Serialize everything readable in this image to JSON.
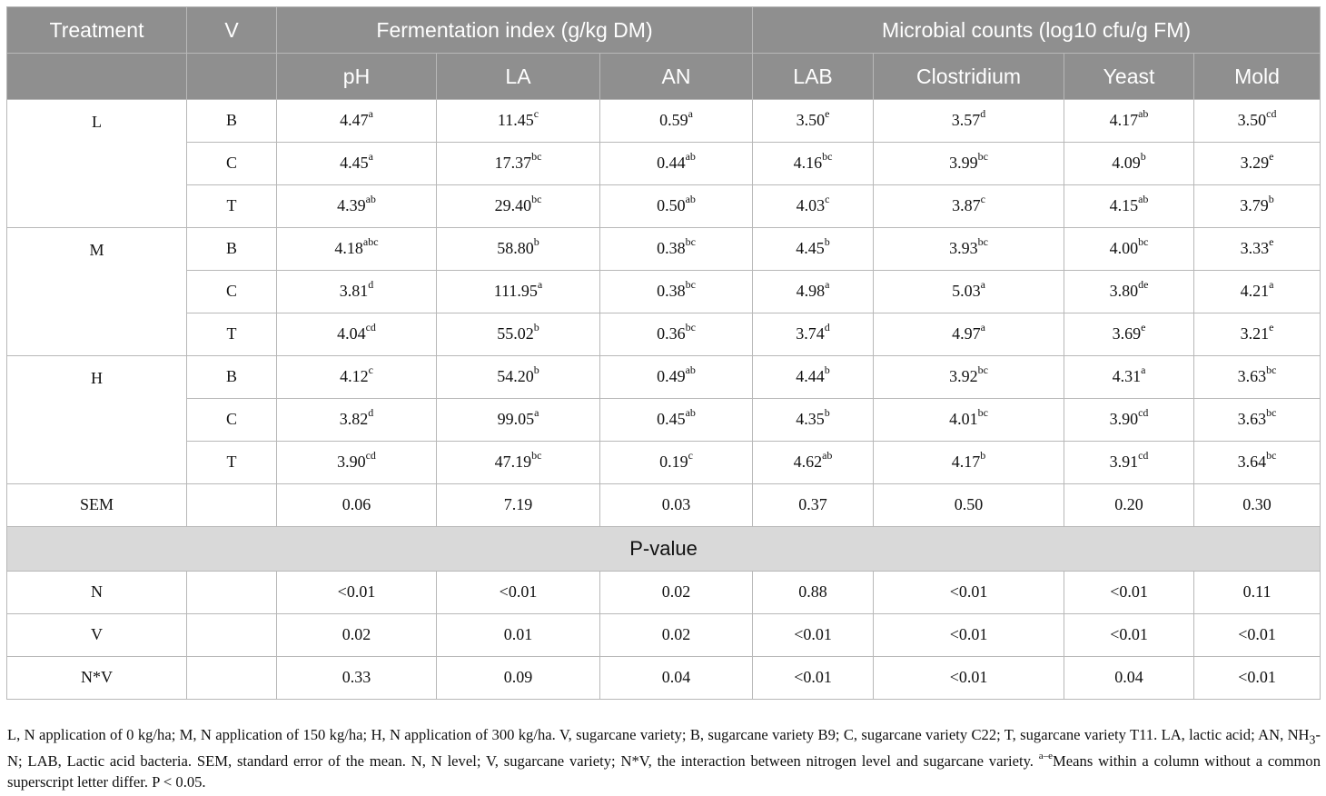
{
  "header": {
    "treatment": "Treatment",
    "v": "V",
    "fermentation_group": "Fermentation index (g/kg DM)",
    "microbial_group": "Microbial counts (log10 cfu/g FM)",
    "columns": [
      "pH",
      "LA",
      "AN",
      "LAB",
      "Clostridium",
      "Yeast",
      "Mold"
    ]
  },
  "groups": [
    {
      "treatment": "L",
      "rows": [
        {
          "v": "B",
          "cells": [
            {
              "val": "4.47",
              "sup": "a"
            },
            {
              "val": "11.45",
              "sup": "c"
            },
            {
              "val": "0.59",
              "sup": "a"
            },
            {
              "val": "3.50",
              "sup": "e"
            },
            {
              "val": "3.57",
              "sup": "d"
            },
            {
              "val": "4.17",
              "sup": "ab"
            },
            {
              "val": "3.50",
              "sup": "cd"
            }
          ]
        },
        {
          "v": "C",
          "cells": [
            {
              "val": "4.45",
              "sup": "a"
            },
            {
              "val": "17.37",
              "sup": "bc"
            },
            {
              "val": "0.44",
              "sup": "ab"
            },
            {
              "val": "4.16",
              "sup": "bc"
            },
            {
              "val": "3.99",
              "sup": "bc"
            },
            {
              "val": "4.09",
              "sup": "b"
            },
            {
              "val": "3.29",
              "sup": "e"
            }
          ]
        },
        {
          "v": "T",
          "cells": [
            {
              "val": "4.39",
              "sup": "ab"
            },
            {
              "val": "29.40",
              "sup": "bc"
            },
            {
              "val": "0.50",
              "sup": "ab"
            },
            {
              "val": "4.03",
              "sup": "c"
            },
            {
              "val": "3.87",
              "sup": "c"
            },
            {
              "val": "4.15",
              "sup": "ab"
            },
            {
              "val": "3.79",
              "sup": "b"
            }
          ]
        }
      ]
    },
    {
      "treatment": "M",
      "rows": [
        {
          "v": "B",
          "cells": [
            {
              "val": "4.18",
              "sup": "abc"
            },
            {
              "val": "58.80",
              "sup": "b"
            },
            {
              "val": "0.38",
              "sup": "bc"
            },
            {
              "val": "4.45",
              "sup": "b"
            },
            {
              "val": "3.93",
              "sup": "bc"
            },
            {
              "val": "4.00",
              "sup": "bc"
            },
            {
              "val": "3.33",
              "sup": "e"
            }
          ]
        },
        {
          "v": "C",
          "cells": [
            {
              "val": "3.81",
              "sup": "d"
            },
            {
              "val": "111.95",
              "sup": "a"
            },
            {
              "val": "0.38",
              "sup": "bc"
            },
            {
              "val": "4.98",
              "sup": "a"
            },
            {
              "val": "5.03",
              "sup": "a"
            },
            {
              "val": "3.80",
              "sup": "de"
            },
            {
              "val": "4.21",
              "sup": "a"
            }
          ]
        },
        {
          "v": "T",
          "cells": [
            {
              "val": "4.04",
              "sup": "cd"
            },
            {
              "val": "55.02",
              "sup": "b"
            },
            {
              "val": "0.36",
              "sup": "bc"
            },
            {
              "val": "3.74",
              "sup": "d"
            },
            {
              "val": "4.97",
              "sup": "a"
            },
            {
              "val": "3.69",
              "sup": "e"
            },
            {
              "val": "3.21",
              "sup": "e"
            }
          ]
        }
      ]
    },
    {
      "treatment": "H",
      "rows": [
        {
          "v": "B",
          "cells": [
            {
              "val": "4.12",
              "sup": "c"
            },
            {
              "val": "54.20",
              "sup": "b"
            },
            {
              "val": "0.49",
              "sup": "ab"
            },
            {
              "val": "4.44",
              "sup": "b"
            },
            {
              "val": "3.92",
              "sup": "bc"
            },
            {
              "val": "4.31",
              "sup": "a"
            },
            {
              "val": "3.63",
              "sup": "bc"
            }
          ]
        },
        {
          "v": "C",
          "cells": [
            {
              "val": "3.82",
              "sup": "d"
            },
            {
              "val": "99.05",
              "sup": "a"
            },
            {
              "val": "0.45",
              "sup": "ab"
            },
            {
              "val": "4.35",
              "sup": "b"
            },
            {
              "val": "4.01",
              "sup": "bc"
            },
            {
              "val": "3.90",
              "sup": "cd"
            },
            {
              "val": "3.63",
              "sup": "bc"
            }
          ]
        },
        {
          "v": "T",
          "cells": [
            {
              "val": "3.90",
              "sup": "cd"
            },
            {
              "val": "47.19",
              "sup": "bc"
            },
            {
              "val": "0.19",
              "sup": "c"
            },
            {
              "val": "4.62",
              "sup": "ab"
            },
            {
              "val": "4.17",
              "sup": "b"
            },
            {
              "val": "3.91",
              "sup": "cd"
            },
            {
              "val": "3.64",
              "sup": "bc"
            }
          ]
        }
      ]
    }
  ],
  "sem": {
    "label": "SEM",
    "values": [
      "0.06",
      "7.19",
      "0.03",
      "0.37",
      "0.50",
      "0.20",
      "0.30"
    ]
  },
  "pvalue_header": "P-value",
  "pvalues": [
    {
      "label": "N",
      "values": [
        "<0.01",
        "<0.01",
        "0.02",
        "0.88",
        "<0.01",
        "<0.01",
        "0.11"
      ]
    },
    {
      "label": "V",
      "values": [
        "0.02",
        "0.01",
        "0.02",
        "<0.01",
        "<0.01",
        "<0.01",
        "<0.01"
      ]
    },
    {
      "label": "N*V",
      "values": [
        "0.33",
        "0.09",
        "0.04",
        "<0.01",
        "<0.01",
        "0.04",
        "<0.01"
      ]
    }
  ],
  "footnote": {
    "part1": "L, N application of 0 kg/ha; M, N application of 150 kg/ha; H, N application of 300 kg/ha. V, sugarcane variety; B, sugarcane variety B9; C, sugarcane variety C22; T, sugarcane variety T11. LA, lactic acid; AN, NH",
    "sub": "3",
    "part2": "-N; LAB, Lactic acid bacteria. SEM, standard error of the mean. N, N level; V, sugarcane variety; N*V, the interaction between nitrogen level and sugarcane variety. ",
    "sup": "a–e",
    "part3": "Means within a column without a common superscript letter differ. P < 0.05."
  }
}
